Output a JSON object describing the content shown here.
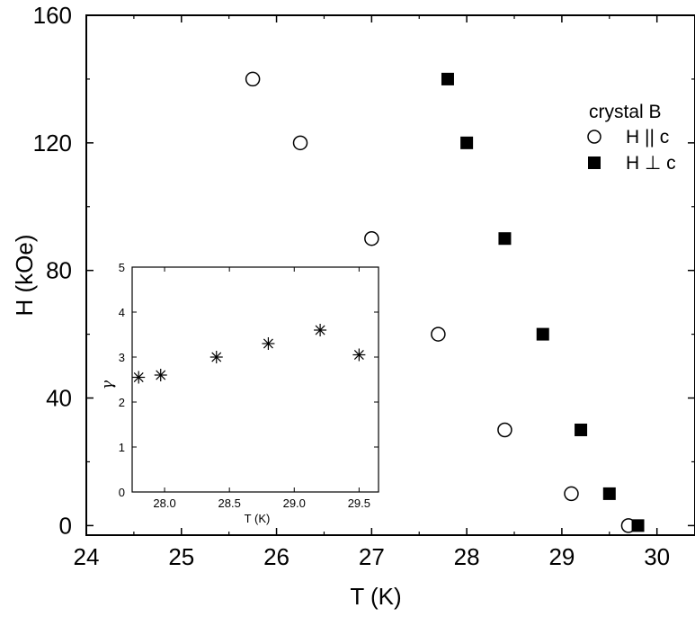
{
  "chart_data": [
    {
      "type": "scatter",
      "title": "",
      "xlabel": "T (K)",
      "ylabel": "H (kOe)",
      "xlim": [
        24,
        30.4
      ],
      "ylim": [
        -3,
        160
      ],
      "xticks": [
        24,
        25,
        26,
        27,
        28,
        29,
        30
      ],
      "yticks": [
        0,
        40,
        80,
        120,
        160
      ],
      "grid": false,
      "legend_position": "top-right",
      "legend_title": "crystal B",
      "series": [
        {
          "name": "H || c",
          "marker": "open-circle",
          "color": "#000000",
          "x": [
            25.75,
            26.25,
            27.0,
            27.7,
            28.4,
            29.1,
            29.7
          ],
          "y": [
            140,
            120,
            90,
            60,
            30,
            10,
            0
          ]
        },
        {
          "name": "H ⊥ c",
          "marker": "filled-square",
          "color": "#000000",
          "x": [
            27.8,
            28.0,
            28.4,
            28.8,
            29.2,
            29.5,
            29.8
          ],
          "y": [
            140,
            120,
            90,
            60,
            30,
            10,
            0
          ]
        }
      ]
    },
    {
      "type": "scatter",
      "title": "",
      "xlabel": "T (K)",
      "ylabel": "γ",
      "xlim": [
        27.75,
        29.65
      ],
      "ylim": [
        0,
        5
      ],
      "xticks": [
        28.0,
        28.5,
        29.0,
        29.5
      ],
      "xtick_labels": [
        "28.0",
        "28.5",
        "29.0",
        "29.5"
      ],
      "yticks": [
        0,
        1,
        2,
        3,
        4,
        5
      ],
      "grid": false,
      "series": [
        {
          "marker": "asterisk",
          "color": "#000000",
          "x": [
            27.8,
            27.97,
            28.4,
            28.8,
            29.2,
            29.5
          ],
          "y": [
            2.55,
            2.6,
            3.0,
            3.3,
            3.6,
            3.05
          ]
        }
      ]
    }
  ]
}
